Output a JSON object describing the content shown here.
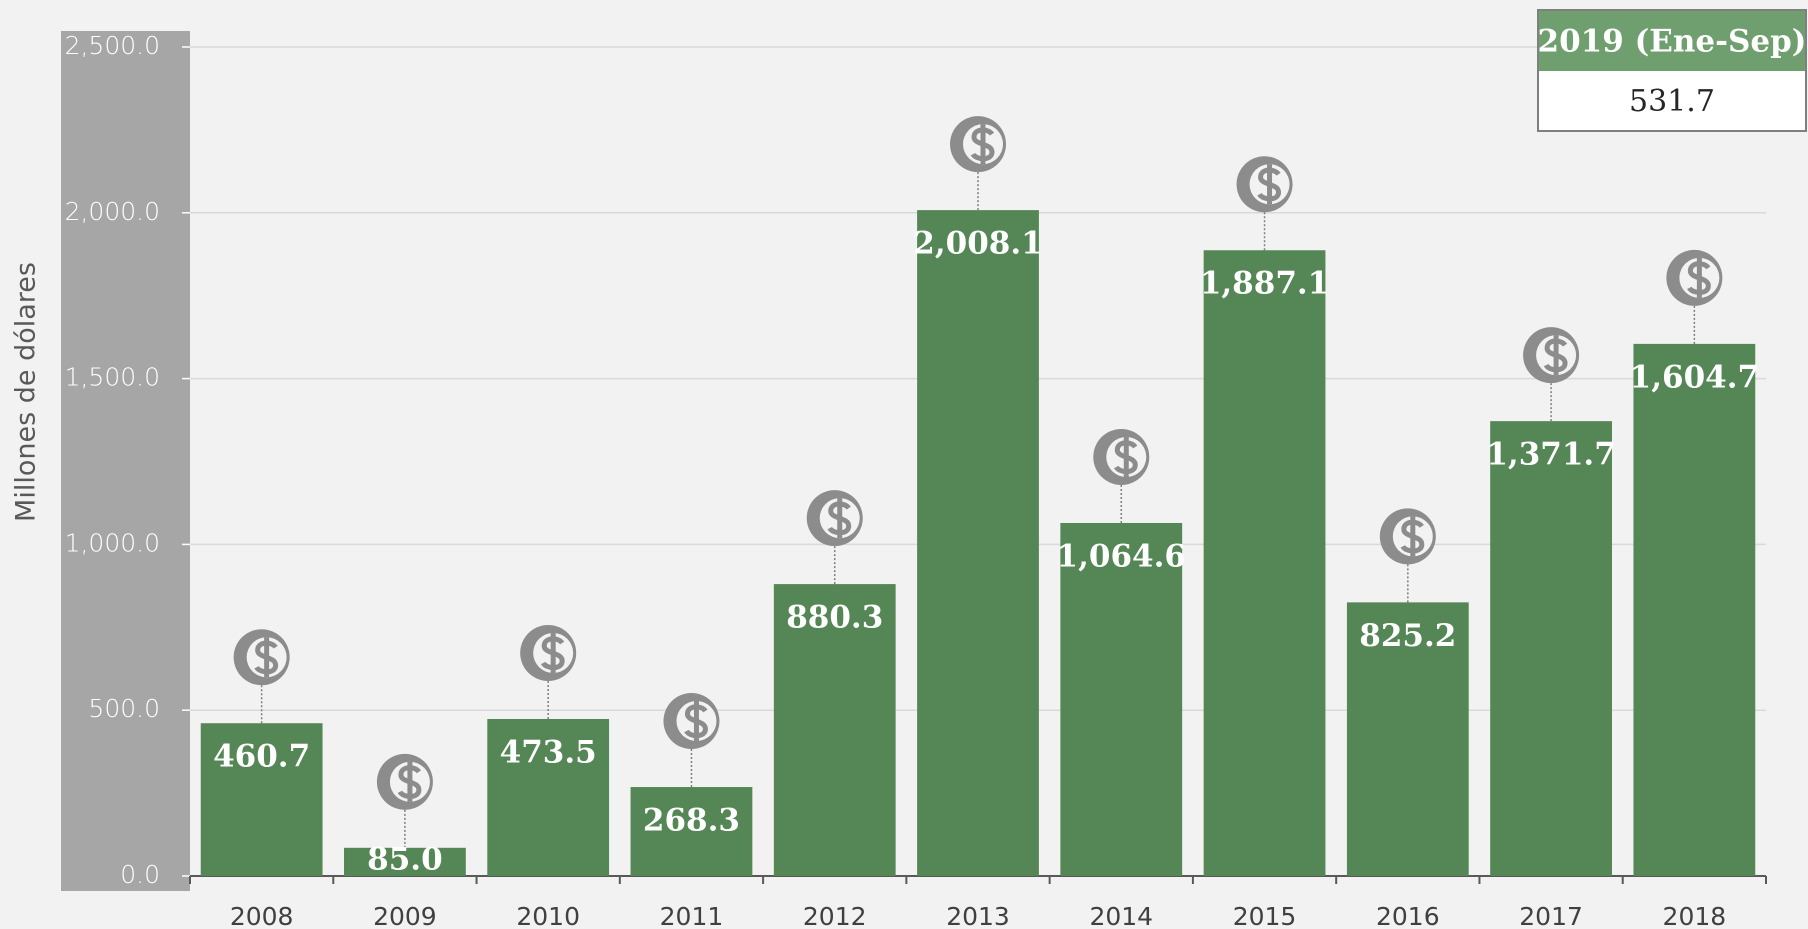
{
  "chart_data": {
    "type": "bar",
    "y_label": "Millones de dólares",
    "categories": [
      "2008",
      "2009",
      "2010",
      "2011",
      "2012",
      "2013",
      "2014",
      "2015",
      "2016",
      "2017",
      "2018"
    ],
    "values": [
      460.7,
      85.0,
      473.5,
      268.3,
      880.3,
      2008.1,
      1064.6,
      1887.1,
      825.2,
      1371.7,
      1604.7
    ],
    "value_labels": [
      "460.7",
      "85.0",
      "473.5",
      "268.3",
      "880.3",
      "2,008.1",
      "1,064.6",
      "1,887.1",
      "825.2",
      "1,371.7",
      "1,604.7"
    ],
    "color": "#548656",
    "ylim": [
      0,
      2500
    ],
    "yticks": [
      {
        "value": 0,
        "label": "0.0"
      },
      {
        "value": 500,
        "label": "500.0"
      },
      {
        "value": 1000,
        "label": "1,000.0"
      },
      {
        "value": 1500,
        "label": "1,500.0"
      },
      {
        "value": 2000,
        "label": "2,000.0"
      },
      {
        "value": 2500,
        "label": "2,500.0"
      }
    ],
    "grid": true,
    "inset": {
      "title": "2019 (Ene-Sep)",
      "value": "531.7"
    }
  }
}
